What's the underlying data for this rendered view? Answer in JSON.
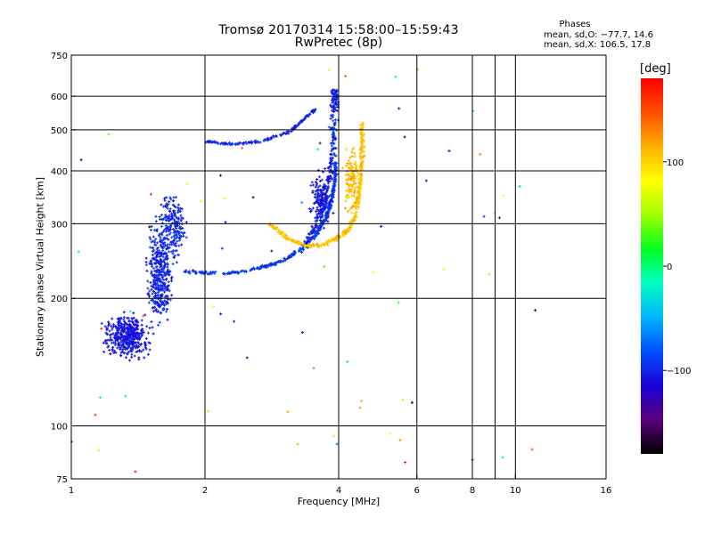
{
  "title": {
    "line1": "Tromsø 20170314 15:58:00–15:59:43",
    "line2": "RwPretec (8p)"
  },
  "phase_info": {
    "heading": "Phases",
    "o_text": "mean, sd,O: −77.7, 14.6",
    "x_text": "mean, sd,X: 106.5, 17.8"
  },
  "colorbar": {
    "label": "[deg]",
    "ticks": [
      {
        "value": 100,
        "label": "100"
      },
      {
        "value": 0,
        "label": "0"
      },
      {
        "value": -100,
        "label": "−100"
      }
    ],
    "range": [
      -180,
      180
    ],
    "colors": [
      "#000000",
      "#5a007a",
      "#1a00d8",
      "#0050ff",
      "#00b4ff",
      "#00ffc0",
      "#00ff20",
      "#a0ff00",
      "#ffff00",
      "#ffb000",
      "#ff5000",
      "#ff0000"
    ]
  },
  "chart_data": {
    "type": "scatter",
    "title": "Tromsø 20170314 15:58:00–15:59:43",
    "subtitle": "RwPretec (8p)",
    "xlabel": "Frequency [MHz]",
    "ylabel": "Stationary phase Virtual Height [km]",
    "x_scale": "log",
    "y_scale": "log",
    "xlim": [
      1,
      16
    ],
    "ylim": [
      75,
      750
    ],
    "grid": true,
    "xticks": [
      {
        "value": 1,
        "label": "1",
        "grid": false
      },
      {
        "value": 2,
        "label": "2",
        "grid": true
      },
      {
        "value": 4,
        "label": "4",
        "grid": true
      },
      {
        "value": 6,
        "label": "6",
        "grid": true
      },
      {
        "value": 8,
        "label": "8",
        "grid": true
      },
      {
        "value": 9,
        "label": "",
        "grid": true
      },
      {
        "value": 10,
        "label": "10",
        "grid": true
      },
      {
        "value": 16,
        "label": "16",
        "grid": false
      }
    ],
    "yticks": [
      {
        "value": 75,
        "label": "75",
        "grid": false
      },
      {
        "value": 100,
        "label": "100",
        "grid": true
      },
      {
        "value": 200,
        "label": "200",
        "grid": true
      },
      {
        "value": 300,
        "label": "300",
        "grid": true
      },
      {
        "value": 400,
        "label": "400",
        "grid": true
      },
      {
        "value": 500,
        "label": "500",
        "grid": true
      },
      {
        "value": 600,
        "label": "600",
        "grid": true
      },
      {
        "value": 750,
        "label": "750",
        "grid": false
      }
    ],
    "color_scale": "phase [deg], range -180 to 180",
    "traces": [
      {
        "desc": "E/low region blob",
        "shape": "blob",
        "x": [
          1.15,
          1.55
        ],
        "y": [
          140,
          190
        ],
        "phase": [
          -120,
          -95
        ],
        "n": 420
      },
      {
        "desc": "F1 vertical cluster",
        "shape": "blob",
        "x": [
          1.45,
          1.72
        ],
        "y": [
          160,
          330
        ],
        "phase": [
          -115,
          -85
        ],
        "n": 380
      },
      {
        "desc": "F1 cluster upper",
        "shape": "blob",
        "x": [
          1.55,
          1.85
        ],
        "y": [
          230,
          380
        ],
        "phase": [
          -110,
          -85
        ],
        "n": 200
      },
      {
        "desc": "O-mode trace",
        "shape": "curve",
        "points": [
          [
            1.8,
            232
          ],
          [
            2.2,
            228
          ],
          [
            2.6,
            235
          ],
          [
            3.0,
            245
          ],
          [
            3.3,
            262
          ],
          [
            3.55,
            282
          ],
          [
            3.75,
            310
          ],
          [
            3.85,
            340
          ],
          [
            3.92,
            380
          ],
          [
            3.95,
            420
          ]
        ],
        "phase": [
          -105,
          -80
        ],
        "n": 380,
        "jitter": 0.012
      },
      {
        "desc": "O-mode vertical cusp",
        "shape": "curve",
        "points": [
          [
            3.3,
            260
          ],
          [
            3.6,
            300
          ],
          [
            3.8,
            380
          ],
          [
            3.9,
            460
          ],
          [
            3.92,
            560
          ],
          [
            3.92,
            620
          ]
        ],
        "phase": [
          -120,
          -80
        ],
        "n": 260,
        "jitter": 0.03
      },
      {
        "desc": "O-mode cusp spread",
        "shape": "blob",
        "x": [
          3.4,
          3.95
        ],
        "y": [
          280,
          420
        ],
        "phase": [
          -125,
          -90
        ],
        "n": 160
      },
      {
        "desc": "Upper faint trace",
        "shape": "curve",
        "points": [
          [
            2.0,
            470
          ],
          [
            2.3,
            462
          ],
          [
            2.7,
            470
          ],
          [
            3.1,
            495
          ],
          [
            3.35,
            530
          ],
          [
            3.55,
            560
          ]
        ],
        "phase": [
          -115,
          -85
        ],
        "n": 160,
        "jitter": 0.01
      },
      {
        "desc": "X-mode trace",
        "shape": "curve",
        "points": [
          [
            2.8,
            300
          ],
          [
            3.1,
            275
          ],
          [
            3.4,
            266
          ],
          [
            3.7,
            268
          ],
          [
            4.0,
            278
          ],
          [
            4.2,
            290
          ],
          [
            4.35,
            310
          ],
          [
            4.45,
            350
          ],
          [
            4.5,
            400
          ],
          [
            4.52,
            460
          ],
          [
            4.52,
            520
          ]
        ],
        "phase": [
          95,
          120
        ],
        "n": 380,
        "jitter": 0.015
      },
      {
        "desc": "X-mode spread",
        "shape": "blob",
        "x": [
          4.05,
          4.55
        ],
        "y": [
          300,
          480
        ],
        "phase": [
          95,
          125
        ],
        "n": 120
      },
      {
        "desc": "Scattered noise",
        "shape": "scatter",
        "x": [
          1.0,
          12.0
        ],
        "y": [
          78,
          700
        ],
        "phase": [
          -180,
          180
        ],
        "n": 70
      }
    ]
  }
}
